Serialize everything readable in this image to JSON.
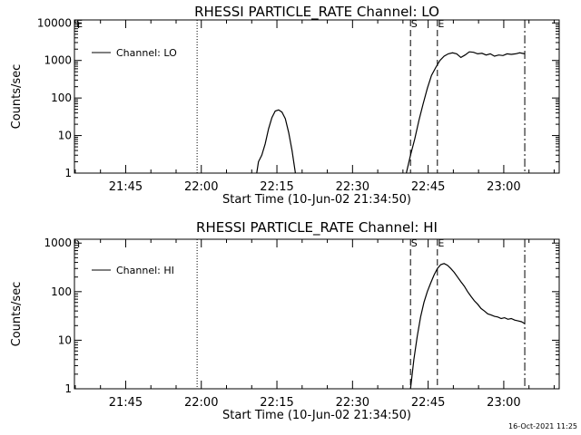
{
  "footer": {
    "timestamp": "16-Oct-2021 11:25"
  },
  "chart_data": [
    {
      "type": "line",
      "title": "RHESSI PARTICLE_RATE Channel: LO",
      "xlabel": "Start Time (10-Jun-02 21:34:50)",
      "ylabel": "Counts/sec",
      "yscale": "log",
      "xlim": [
        "21:34:50",
        "23:11:00"
      ],
      "ylim": [
        1,
        12000
      ],
      "xticks": [
        "21:45",
        "22:00",
        "22:15",
        "22:30",
        "22:45",
        "23:00"
      ],
      "yticks": [
        "1",
        "10",
        "100",
        "1000",
        "10000"
      ],
      "legend": {
        "position": "top-left",
        "entries": [
          "Channel: LO"
        ]
      },
      "markers": [
        {
          "time": "21:35:40",
          "style": "corner",
          "label": "E"
        },
        {
          "time": "21:59:10",
          "style": "dotted",
          "label": ""
        },
        {
          "time": "22:41:30",
          "style": "dashed",
          "label": "S"
        },
        {
          "time": "22:46:50",
          "style": "dashed",
          "label": "E"
        },
        {
          "time": "23:04:10",
          "style": "dash-dot",
          "label": ""
        }
      ],
      "series": [
        {
          "name": "Channel: LO",
          "segments": [
            [
              [
                "22:11:00",
                1
              ],
              [
                "22:11:20",
                2
              ],
              [
                "22:12:00",
                3
              ],
              [
                "22:12:40",
                6
              ],
              [
                "22:13:20",
                15
              ],
              [
                "22:14:00",
                30
              ],
              [
                "22:14:40",
                45
              ],
              [
                "22:15:20",
                48
              ],
              [
                "22:16:00",
                42
              ],
              [
                "22:16:40",
                28
              ],
              [
                "22:17:20",
                12
              ],
              [
                "22:18:00",
                4
              ],
              [
                "22:18:40",
                1
              ]
            ],
            [
              [
                "22:40:40",
                1
              ],
              [
                "22:41:30",
                3
              ],
              [
                "22:42:20",
                8
              ],
              [
                "22:43:10",
                25
              ],
              [
                "22:44:00",
                70
              ],
              [
                "22:44:50",
                180
              ],
              [
                "22:45:40",
                400
              ],
              [
                "22:46:30",
                650
              ],
              [
                "22:47:20",
                1000
              ],
              [
                "22:48:10",
                1300
              ],
              [
                "22:49:00",
                1500
              ],
              [
                "22:49:50",
                1600
              ],
              [
                "22:50:40",
                1500
              ],
              [
                "22:51:30",
                1200
              ],
              [
                "22:52:20",
                1400
              ],
              [
                "22:53:10",
                1700
              ],
              [
                "22:54:00",
                1650
              ],
              [
                "22:54:50",
                1500
              ],
              [
                "22:55:40",
                1550
              ],
              [
                "22:56:30",
                1400
              ],
              [
                "22:57:20",
                1500
              ],
              [
                "22:58:10",
                1300
              ],
              [
                "22:59:00",
                1400
              ],
              [
                "22:59:50",
                1350
              ],
              [
                "23:00:40",
                1500
              ],
              [
                "23:01:30",
                1450
              ],
              [
                "23:02:20",
                1500
              ],
              [
                "23:03:10",
                1600
              ],
              [
                "23:04:10",
                1500
              ]
            ]
          ]
        }
      ]
    },
    {
      "type": "line",
      "title": "RHESSI PARTICLE_RATE Channel: HI",
      "xlabel": "Start Time (10-Jun-02 21:34:50)",
      "ylabel": "Counts/sec",
      "yscale": "log",
      "xlim": [
        "21:34:50",
        "23:11:00"
      ],
      "ylim": [
        1,
        1200
      ],
      "xticks": [
        "21:45",
        "22:00",
        "22:15",
        "22:30",
        "22:45",
        "23:00"
      ],
      "yticks": [
        "1",
        "10",
        "100",
        "1000"
      ],
      "legend": {
        "position": "top-left",
        "entries": [
          "Channel: HI"
        ]
      },
      "markers": [
        {
          "time": "21:35:40",
          "style": "corner",
          "label": ""
        },
        {
          "time": "21:59:10",
          "style": "dotted",
          "label": ""
        },
        {
          "time": "22:41:30",
          "style": "dashed",
          "label": "S"
        },
        {
          "time": "22:46:50",
          "style": "dashed",
          "label": "E"
        },
        {
          "time": "23:04:10",
          "style": "dash-dot",
          "label": ""
        }
      ],
      "series": [
        {
          "name": "Channel: HI",
          "segments": [
            [
              [
                "22:41:30",
                1
              ],
              [
                "22:42:10",
                4
              ],
              [
                "22:42:50",
                12
              ],
              [
                "22:43:30",
                30
              ],
              [
                "22:44:10",
                60
              ],
              [
                "22:44:50",
                100
              ],
              [
                "22:45:30",
                150
              ],
              [
                "22:46:10",
                220
              ],
              [
                "22:46:50",
                300
              ],
              [
                "22:47:30",
                360
              ],
              [
                "22:48:10",
                380
              ],
              [
                "22:48:50",
                350
              ],
              [
                "22:49:30",
                300
              ],
              [
                "22:50:10",
                250
              ],
              [
                "22:50:50",
                200
              ],
              [
                "22:51:30",
                160
              ],
              [
                "22:52:10",
                130
              ],
              [
                "22:52:50",
                100
              ],
              [
                "22:53:30",
                80
              ],
              [
                "22:54:10",
                65
              ],
              [
                "22:54:50",
                55
              ],
              [
                "22:55:30",
                45
              ],
              [
                "22:56:10",
                40
              ],
              [
                "22:56:50",
                35
              ],
              [
                "22:57:30",
                33
              ],
              [
                "22:58:10",
                31
              ],
              [
                "22:58:50",
                30
              ],
              [
                "22:59:30",
                28
              ],
              [
                "23:00:10",
                29
              ],
              [
                "23:00:50",
                27
              ],
              [
                "23:01:30",
                28
              ],
              [
                "23:02:10",
                26
              ],
              [
                "23:02:50",
                25
              ],
              [
                "23:03:30",
                24
              ],
              [
                "23:04:10",
                22
              ]
            ]
          ]
        }
      ]
    }
  ]
}
